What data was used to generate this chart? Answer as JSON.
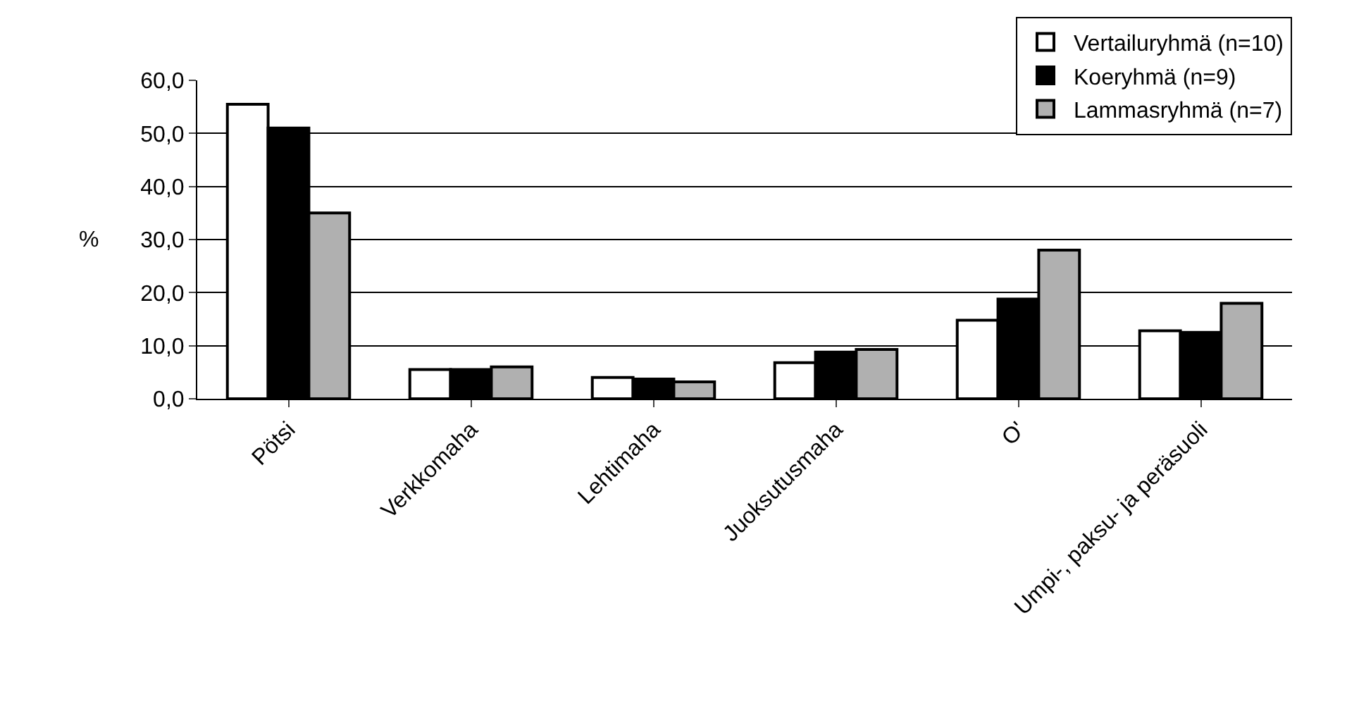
{
  "chart_data": {
    "type": "bar",
    "ylabel": "%",
    "categories": [
      "Pötsi",
      "Verkkomaha",
      "Lehtimaha",
      "Juoksutusmaha",
      "O'",
      "Umpi-, paksu- ja peräsuoli"
    ],
    "series": [
      {
        "name": "Vertailuryhmä (n=10)",
        "color": "#ffffff",
        "values": [
          55.5,
          5.5,
          4.0,
          6.8,
          14.8,
          12.8
        ]
      },
      {
        "name": "Koeryhmä (n=9)",
        "color": "#000000",
        "values": [
          51.0,
          5.5,
          3.7,
          8.8,
          18.8,
          12.5
        ]
      },
      {
        "name": "Lammasryhmä (n=7)",
        "color": "#b0b0b0",
        "values": [
          35.0,
          6.0,
          3.2,
          9.3,
          28.0,
          18.0
        ]
      }
    ],
    "ylim": [
      0,
      60
    ],
    "yticks": [
      {
        "value": 0,
        "label": "0,0"
      },
      {
        "value": 10,
        "label": "10,0"
      },
      {
        "value": 20,
        "label": "20,0"
      },
      {
        "value": 30,
        "label": "30,0"
      },
      {
        "value": 40,
        "label": "40,0"
      },
      {
        "value": 50,
        "label": "50,0"
      },
      {
        "value": 60,
        "label": "60,0"
      }
    ],
    "grid": "y",
    "legend": "top right"
  }
}
